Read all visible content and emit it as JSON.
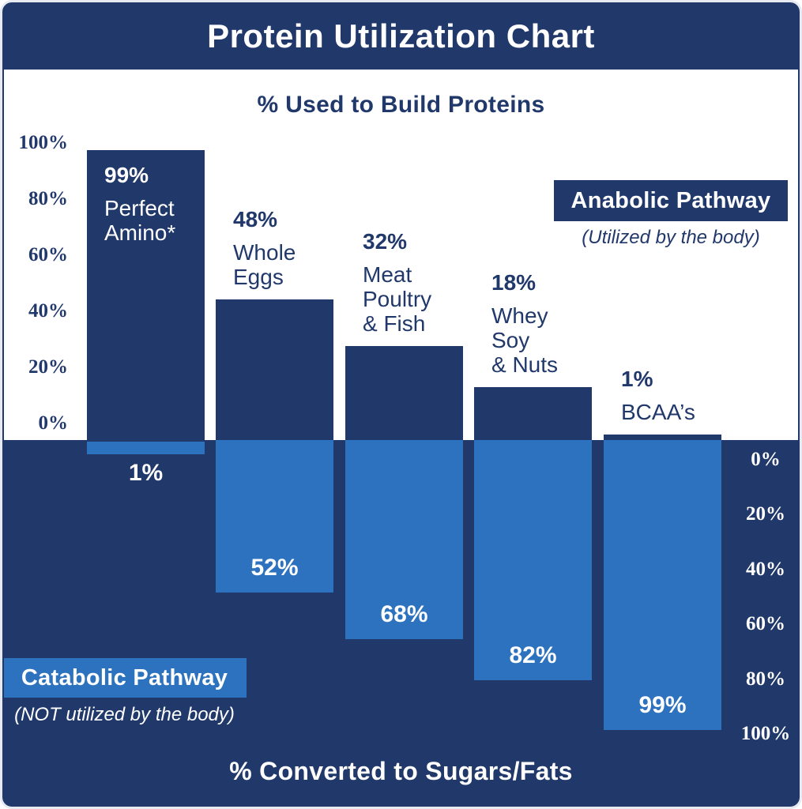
{
  "title": "Protein Utilization Chart",
  "upper_axis": {
    "title": "% Used to Build Proteins",
    "ticks": [
      "100%",
      "80%",
      "60%",
      "40%",
      "20%",
      "0%"
    ]
  },
  "lower_axis": {
    "title": "% Converted to Sugars/Fats",
    "ticks": [
      "0%",
      "20%",
      "40%",
      "60%",
      "80%",
      "100%"
    ]
  },
  "anabolic_legend": {
    "label": "Anabolic Pathway",
    "caption": "(Utilized by the body)"
  },
  "catabolic_legend": {
    "label": "Catabolic Pathway",
    "caption": "(NOT utilized by the body)"
  },
  "colors": {
    "navy": "#21386B",
    "blue": "#2D72BE",
    "white": "#FFFFFF"
  },
  "chart_data": {
    "type": "bar",
    "title": "Protein Utilization Chart",
    "categories": [
      "Perfect Amino*",
      "Whole Eggs",
      "Meat Poultry & Fish",
      "Whey Soy & Nuts",
      "BCAA’s"
    ],
    "category_lines": [
      [
        "Perfect",
        "Amino*"
      ],
      [
        "Whole",
        "Eggs"
      ],
      [
        "Meat",
        "Poultry",
        "& Fish"
      ],
      [
        "Whey",
        "Soy",
        "& Nuts"
      ],
      [
        "BCAA’s"
      ]
    ],
    "series": [
      {
        "name": "% Used to Build Proteins",
        "pathway": "Anabolic Pathway",
        "note": "(Utilized by the body)",
        "direction": "up",
        "values": [
          99,
          48,
          32,
          18,
          1
        ],
        "color": "#21386B"
      },
      {
        "name": "% Converted to Sugars/Fats",
        "pathway": "Catabolic Pathway",
        "note": "(NOT utilized by the body)",
        "direction": "down",
        "values": [
          1,
          52,
          68,
          82,
          99
        ],
        "color": "#2D72BE"
      }
    ],
    "value_suffix": "%",
    "axis_range": [
      0,
      100
    ],
    "upper_axis_side": "left",
    "lower_axis_side": "right",
    "grid": false,
    "legend_position": "inline-boxes"
  }
}
